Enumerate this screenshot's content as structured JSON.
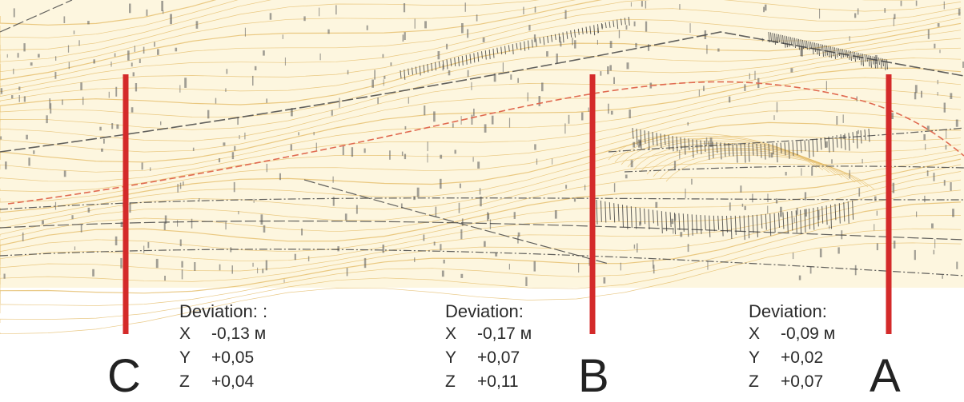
{
  "map": {
    "description_colors": {
      "background": "#fdf6df",
      "contour": "#e3b860",
      "road": "#444444",
      "axis_line": "#e06a50",
      "section_marker": "#d42a2a"
    }
  },
  "sections": [
    {
      "letter": "C",
      "title": "Deviation:      :",
      "x_label": "X",
      "x_value": "-0,13 м",
      "y_label": "Y",
      "y_value": "+0,05",
      "z_label": "Z",
      "z_value": "+0,04"
    },
    {
      "letter": "B",
      "title": "Deviation:",
      "x_label": "X",
      "x_value": "-0,17 м",
      "y_label": "Y",
      "y_value": "+0,07",
      "z_label": "Z",
      "z_value": "+0,11"
    },
    {
      "letter": "A",
      "title": "Deviation:",
      "x_label": "X",
      "x_value": "-0,09 м",
      "y_label": "Y",
      "y_value": "+0,02",
      "z_label": "Z",
      "z_value": "+0,07"
    }
  ]
}
